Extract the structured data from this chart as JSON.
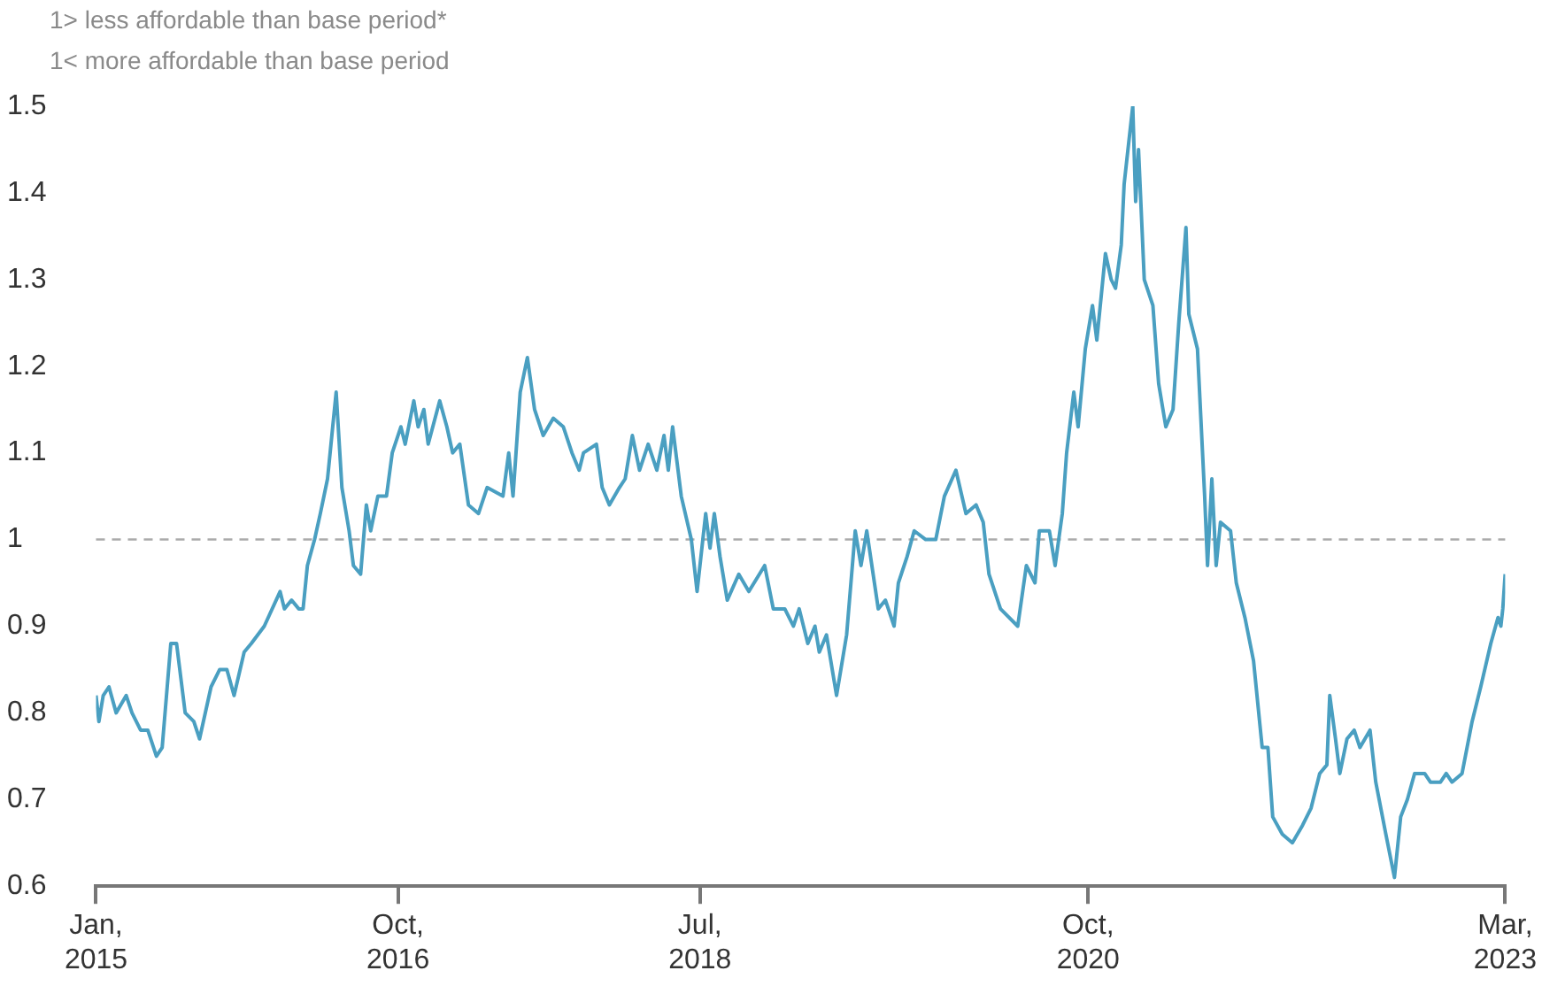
{
  "chart_data": {
    "type": "line",
    "annotations": [
      "1> less affordable than base period*",
      "1< more affordable than base period"
    ],
    "xlim": [
      "2015-01",
      "2023-03"
    ],
    "xticks": [
      {
        "value": "2015-01",
        "label": "Jan, 2015"
      },
      {
        "value": "2016-10",
        "label": "Oct, 2016"
      },
      {
        "value": "2018-07",
        "label": "Jul, 2018"
      },
      {
        "value": "2020-10",
        "label": "Oct, 2020"
      },
      {
        "value": "2023-03",
        "label": "Mar, 2023"
      }
    ],
    "ylim": [
      0.6,
      1.5
    ],
    "yticks": [
      0.6,
      0.7,
      0.8,
      0.9,
      1,
      1.1,
      1.2,
      1.3,
      1.4,
      1.5
    ],
    "grid": false,
    "legend": false,
    "marker": "none",
    "ref_lines": [
      {
        "axis": "y",
        "value": 1,
        "color": "#aaaaaa",
        "line_style": "dashed"
      }
    ],
    "series": [
      {
        "color": "#4a9fc1",
        "x": [
          "2015-01-01",
          "2015-01-07",
          "2015-01-16",
          "2015-01-28",
          "2015-02-13",
          "2015-03-04",
          "2015-03-16",
          "2015-04-04",
          "2015-04-19",
          "2015-05-07",
          "2015-05-19",
          "2015-06-07",
          "2015-06-19",
          "2015-07-07",
          "2015-07-25",
          "2015-08-07",
          "2015-09-01",
          "2015-09-19",
          "2015-10-04",
          "2015-10-19",
          "2015-11-10",
          "2015-11-25",
          "2015-12-22",
          "2016-01-25",
          "2016-02-04",
          "2016-02-19",
          "2016-03-04",
          "2016-03-13",
          "2016-03-22",
          "2016-04-07",
          "2016-04-19",
          "2016-05-04",
          "2016-05-22",
          "2016-06-04",
          "2016-06-19",
          "2016-06-28",
          "2016-07-13",
          "2016-07-25",
          "2016-08-04",
          "2016-08-19",
          "2016-09-07",
          "2016-09-19",
          "2016-10-07",
          "2016-10-16",
          "2016-11-04",
          "2016-11-13",
          "2016-11-25",
          "2016-12-04",
          "2016-12-28",
          "2017-01-13",
          "2017-01-25",
          "2017-02-10",
          "2017-02-28",
          "2017-03-19",
          "2017-04-07",
          "2017-05-10",
          "2017-05-22",
          "2017-06-01",
          "2017-06-16",
          "2017-07-01",
          "2017-07-16",
          "2017-08-04",
          "2017-08-25",
          "2017-09-16",
          "2017-10-04",
          "2017-10-19",
          "2017-10-28",
          "2017-11-25",
          "2017-12-07",
          "2017-12-22",
          "2018-01-13",
          "2018-01-25",
          "2018-02-10",
          "2018-02-25",
          "2018-03-13",
          "2018-04-01",
          "2018-04-16",
          "2018-04-25",
          "2018-05-04",
          "2018-05-22",
          "2018-06-13",
          "2018-06-25",
          "2018-07-13",
          "2018-07-22",
          "2018-08-01",
          "2018-08-13",
          "2018-08-28",
          "2018-09-22",
          "2018-10-13",
          "2018-11-16",
          "2018-12-04",
          "2018-12-28",
          "2019-01-16",
          "2019-01-28",
          "2019-02-16",
          "2019-03-01",
          "2019-03-10",
          "2019-03-25",
          "2019-04-16",
          "2019-05-07",
          "2019-05-25",
          "2019-06-07",
          "2019-06-19",
          "2019-07-13",
          "2019-07-28",
          "2019-08-16",
          "2019-08-25",
          "2019-09-13",
          "2019-09-28",
          "2019-10-22",
          "2019-11-13",
          "2019-12-01",
          "2019-12-25",
          "2020-01-16",
          "2020-02-07",
          "2020-02-22",
          "2020-03-04",
          "2020-03-28",
          "2020-05-04",
          "2020-05-22",
          "2020-06-10",
          "2020-06-19",
          "2020-07-10",
          "2020-07-22",
          "2020-08-07",
          "2020-08-16",
          "2020-09-01",
          "2020-09-10",
          "2020-09-25",
          "2020-10-10",
          "2020-10-19",
          "2020-11-07",
          "2020-11-19",
          "2020-11-28",
          "2020-12-10",
          "2020-12-16",
          "2021-01-04",
          "2021-01-10",
          "2021-01-16",
          "2021-01-28",
          "2021-02-16",
          "2021-02-28",
          "2021-03-13",
          "2021-03-28",
          "2021-04-10",
          "2021-04-25",
          "2021-05-01",
          "2021-05-19",
          "2021-06-04",
          "2021-06-10",
          "2021-06-19",
          "2021-06-28",
          "2021-07-07",
          "2021-07-28",
          "2021-08-10",
          "2021-08-28",
          "2021-09-16",
          "2021-10-04",
          "2021-10-16",
          "2021-10-26",
          "2021-11-16",
          "2021-12-07",
          "2021-12-28",
          "2022-01-16",
          "2022-02-04",
          "2022-02-19",
          "2022-02-25",
          "2022-03-07",
          "2022-03-16",
          "2022-04-01",
          "2022-04-16",
          "2022-04-28",
          "2022-05-19",
          "2022-06-01",
          "2022-06-22",
          "2022-07-10",
          "2022-07-23",
          "2022-08-07",
          "2022-08-22",
          "2022-09-13",
          "2022-09-25",
          "2022-10-16",
          "2022-10-28",
          "2022-11-10",
          "2022-12-01",
          "2022-12-22",
          "2023-01-10",
          "2023-02-01",
          "2023-02-16",
          "2023-02-22",
          "2023-02-26",
          "2023-03-01"
        ],
        "values": [
          0.82,
          0.79,
          0.82,
          0.83,
          0.8,
          0.82,
          0.8,
          0.78,
          0.78,
          0.75,
          0.76,
          0.88,
          0.88,
          0.8,
          0.79,
          0.77,
          0.83,
          0.85,
          0.85,
          0.82,
          0.87,
          0.88,
          0.9,
          0.94,
          0.92,
          0.93,
          0.92,
          0.92,
          0.97,
          1.0,
          1.03,
          1.07,
          1.17,
          1.06,
          1.01,
          0.97,
          0.96,
          1.04,
          1.01,
          1.05,
          1.05,
          1.1,
          1.13,
          1.11,
          1.16,
          1.13,
          1.15,
          1.11,
          1.16,
          1.13,
          1.1,
          1.11,
          1.04,
          1.03,
          1.06,
          1.05,
          1.1,
          1.05,
          1.17,
          1.21,
          1.15,
          1.12,
          1.14,
          1.13,
          1.1,
          1.08,
          1.1,
          1.11,
          1.06,
          1.04,
          1.06,
          1.07,
          1.12,
          1.08,
          1.11,
          1.08,
          1.12,
          1.08,
          1.13,
          1.05,
          1.0,
          0.94,
          1.03,
          0.99,
          1.03,
          0.98,
          0.93,
          0.96,
          0.94,
          0.97,
          0.92,
          0.92,
          0.9,
          0.92,
          0.88,
          0.9,
          0.87,
          0.89,
          0.82,
          0.89,
          1.01,
          0.97,
          1.01,
          0.92,
          0.93,
          0.9,
          0.95,
          0.98,
          1.01,
          1.0,
          1.0,
          1.05,
          1.08,
          1.03,
          1.04,
          1.02,
          0.96,
          0.92,
          0.9,
          0.97,
          0.95,
          1.01,
          1.01,
          0.97,
          1.03,
          1.1,
          1.17,
          1.13,
          1.22,
          1.27,
          1.23,
          1.33,
          1.3,
          1.29,
          1.34,
          1.41,
          1.5,
          1.39,
          1.45,
          1.3,
          1.27,
          1.18,
          1.13,
          1.15,
          1.25,
          1.36,
          1.26,
          1.22,
          1.05,
          0.97,
          1.07,
          0.97,
          1.02,
          1.01,
          0.95,
          0.91,
          0.86,
          0.76,
          0.76,
          0.68,
          0.66,
          0.65,
          0.67,
          0.69,
          0.73,
          0.74,
          0.82,
          0.77,
          0.73,
          0.77,
          0.78,
          0.76,
          0.78,
          0.72,
          0.66,
          0.61,
          0.68,
          0.7,
          0.73,
          0.73,
          0.72,
          0.72,
          0.73,
          0.72,
          0.73,
          0.79,
          0.83,
          0.88,
          0.91,
          0.9,
          0.92,
          0.96
        ]
      }
    ]
  }
}
